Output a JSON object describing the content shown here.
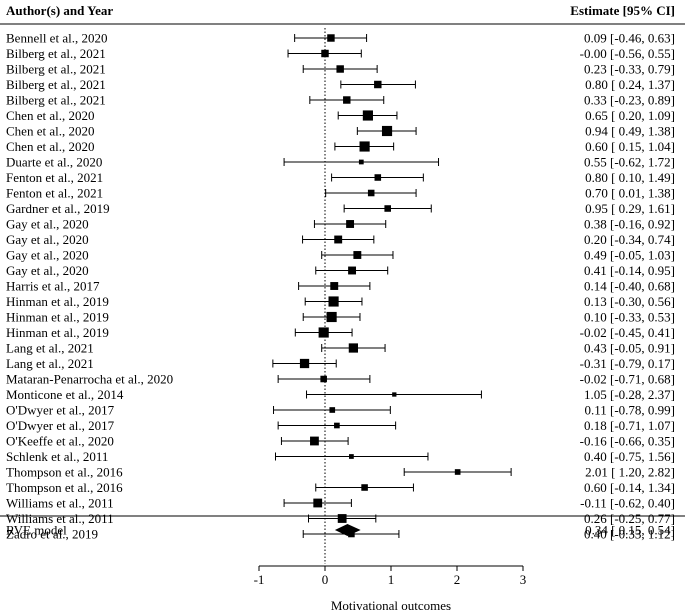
{
  "chart_data": {
    "type": "forest",
    "header_left": "Author(s) and Year",
    "header_right": "Estimate [95% CI]",
    "xlabel": "Motivational outcomes",
    "xlim": [
      -1,
      3
    ],
    "x_ticks": [
      -1,
      0,
      1,
      2,
      3
    ],
    "reference_line_x": 0,
    "studies": [
      {
        "label": "Bennell et al., 2020",
        "est": 0.09,
        "lo": -0.46,
        "hi": 0.63,
        "text": "0.09 [-0.46, 0.63]",
        "weight": 0.55
      },
      {
        "label": "Bilberg et al., 2021",
        "est": -0.0,
        "lo": -0.56,
        "hi": 0.55,
        "text": "-0.00 [-0.56, 0.55]",
        "weight": 0.55
      },
      {
        "label": "Bilberg et al., 2021",
        "est": 0.23,
        "lo": -0.33,
        "hi": 0.79,
        "text": "0.23 [-0.33, 0.79]",
        "weight": 0.55
      },
      {
        "label": "Bilberg et al., 2021",
        "est": 0.8,
        "lo": 0.24,
        "hi": 1.37,
        "text": "0.80 [ 0.24, 1.37]",
        "weight": 0.55
      },
      {
        "label": "Bilberg et al., 2021",
        "est": 0.33,
        "lo": -0.23,
        "hi": 0.89,
        "text": "0.33 [-0.23, 0.89]",
        "weight": 0.55
      },
      {
        "label": "Chen et al., 2020",
        "est": 0.65,
        "lo": 0.2,
        "hi": 1.09,
        "text": "0.65 [ 0.20, 1.09]",
        "weight": 0.85
      },
      {
        "label": "Chen et al., 2020",
        "est": 0.94,
        "lo": 0.49,
        "hi": 1.38,
        "text": "0.94 [ 0.49, 1.38]",
        "weight": 0.85
      },
      {
        "label": "Chen et al., 2020",
        "est": 0.6,
        "lo": 0.15,
        "hi": 1.04,
        "text": "0.60 [ 0.15, 1.04]",
        "weight": 0.85
      },
      {
        "label": "Duarte et al., 2020",
        "est": 0.55,
        "lo": -0.62,
        "hi": 1.72,
        "text": "0.55 [-0.62, 1.72]",
        "weight": 0.25
      },
      {
        "label": "Fenton et al., 2021",
        "est": 0.8,
        "lo": 0.1,
        "hi": 1.49,
        "text": "0.80 [ 0.10, 1.49]",
        "weight": 0.45
      },
      {
        "label": "Fenton et al., 2021",
        "est": 0.7,
        "lo": 0.01,
        "hi": 1.38,
        "text": "0.70 [ 0.01, 1.38]",
        "weight": 0.45
      },
      {
        "label": "Gardner et al., 2019",
        "est": 0.95,
        "lo": 0.29,
        "hi": 1.61,
        "text": "0.95 [ 0.29, 1.61]",
        "weight": 0.45
      },
      {
        "label": "Gay et al., 2020",
        "est": 0.38,
        "lo": -0.16,
        "hi": 0.92,
        "text": "0.38 [-0.16, 0.92]",
        "weight": 0.6
      },
      {
        "label": "Gay et al., 2020",
        "est": 0.2,
        "lo": -0.34,
        "hi": 0.74,
        "text": "0.20 [-0.34, 0.74]",
        "weight": 0.6
      },
      {
        "label": "Gay et al., 2020",
        "est": 0.49,
        "lo": -0.05,
        "hi": 1.03,
        "text": "0.49 [-0.05, 1.03]",
        "weight": 0.6
      },
      {
        "label": "Gay et al., 2020",
        "est": 0.41,
        "lo": -0.14,
        "hi": 0.95,
        "text": "0.41 [-0.14, 0.95]",
        "weight": 0.6
      },
      {
        "label": "Harris et al., 2017",
        "est": 0.14,
        "lo": -0.4,
        "hi": 0.68,
        "text": "0.14 [-0.40, 0.68]",
        "weight": 0.6
      },
      {
        "label": "Hinman et al., 2019",
        "est": 0.13,
        "lo": -0.3,
        "hi": 0.56,
        "text": "0.13 [-0.30, 0.56]",
        "weight": 0.85
      },
      {
        "label": "Hinman et al., 2019",
        "est": 0.1,
        "lo": -0.33,
        "hi": 0.53,
        "text": "0.10 [-0.33, 0.53]",
        "weight": 0.85
      },
      {
        "label": "Hinman et al., 2019",
        "est": -0.02,
        "lo": -0.45,
        "hi": 0.41,
        "text": "-0.02 [-0.45, 0.41]",
        "weight": 0.85
      },
      {
        "label": "Lang et al., 2021",
        "est": 0.43,
        "lo": -0.05,
        "hi": 0.91,
        "text": "0.43 [-0.05, 0.91]",
        "weight": 0.75
      },
      {
        "label": "Lang et al., 2021",
        "est": -0.31,
        "lo": -0.79,
        "hi": 0.17,
        "text": "-0.31 [-0.79, 0.17]",
        "weight": 0.75
      },
      {
        "label": "Mataran-Penarrocha et al., 2020",
        "est": -0.02,
        "lo": -0.71,
        "hi": 0.68,
        "text": "-0.02 [-0.71, 0.68]",
        "weight": 0.45
      },
      {
        "label": "Monticone et al., 2014",
        "est": 1.05,
        "lo": -0.28,
        "hi": 2.37,
        "text": "1.05 [-0.28, 2.37]",
        "weight": 0.2
      },
      {
        "label": "O'Dwyer et al., 2017",
        "est": 0.11,
        "lo": -0.78,
        "hi": 0.99,
        "text": "0.11 [-0.78, 0.99]",
        "weight": 0.35
      },
      {
        "label": "O'Dwyer et al., 2017",
        "est": 0.18,
        "lo": -0.71,
        "hi": 1.07,
        "text": "0.18 [-0.71, 1.07]",
        "weight": 0.35
      },
      {
        "label": "O'Keeffe et al., 2020",
        "est": -0.16,
        "lo": -0.66,
        "hi": 0.35,
        "text": "-0.16 [-0.66, 0.35]",
        "weight": 0.7
      },
      {
        "label": "Schlenk et al., 2011",
        "est": 0.4,
        "lo": -0.75,
        "hi": 1.56,
        "text": "0.40 [-0.75, 1.56]",
        "weight": 0.25
      },
      {
        "label": "Thompson et al., 2016",
        "est": 2.01,
        "lo": 1.2,
        "hi": 2.82,
        "text": "2.01 [ 1.20, 2.82]",
        "weight": 0.35
      },
      {
        "label": "Thompson et al., 2016",
        "est": 0.6,
        "lo": -0.14,
        "hi": 1.34,
        "text": "0.60 [-0.14, 1.34]",
        "weight": 0.45
      },
      {
        "label": "Williams et al., 2011",
        "est": -0.11,
        "lo": -0.62,
        "hi": 0.4,
        "text": "-0.11 [-0.62, 0.40]",
        "weight": 0.7
      },
      {
        "label": "Williams et al., 2011",
        "est": 0.26,
        "lo": -0.25,
        "hi": 0.77,
        "text": "0.26 [-0.25, 0.77]",
        "weight": 0.7
      },
      {
        "label": "Zadro et al., 2019",
        "est": 0.4,
        "lo": -0.33,
        "hi": 1.12,
        "text": "0.40 [-0.33, 1.12]",
        "weight": 0.45
      }
    ],
    "summary": {
      "label": "RVE model",
      "est": 0.34,
      "lo": 0.15,
      "hi": 0.54,
      "text": "0.34 [ 0.15, 0.54]"
    },
    "colors": {
      "ink": "#000000",
      "background": "#ffffff"
    }
  }
}
